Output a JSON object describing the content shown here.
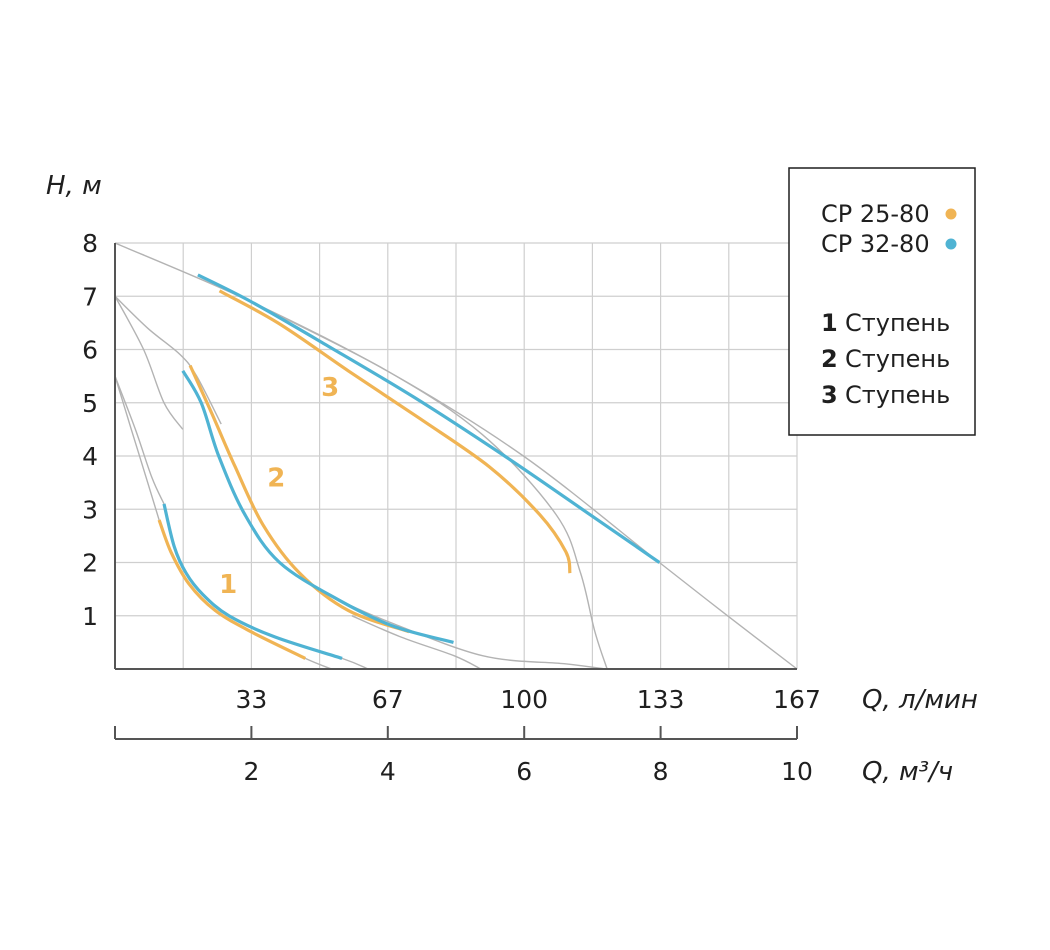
{
  "chart_data": {
    "type": "line",
    "y_axis": {
      "label": "H, м",
      "ylim": [
        0,
        8
      ],
      "ticks": [
        "1",
        "2",
        "3",
        "4",
        "5",
        "6",
        "7",
        "8"
      ]
    },
    "x_axis": {
      "label": "Q, л/мин",
      "xlim": [
        0,
        167
      ],
      "ticks": [
        "33",
        "67",
        "100",
        "133",
        "167"
      ]
    },
    "x_axis_secondary": {
      "label": "Q, м³/ч",
      "xlim": [
        0,
        10
      ],
      "ticks": [
        "2",
        "4",
        "6",
        "8",
        "10"
      ]
    },
    "grid": true,
    "colors": {
      "orange": "#f0b454",
      "blue": "#4fb3d3",
      "gray": "#b3b3b3"
    },
    "legend": {
      "placement": "top-right",
      "models": [
        {
          "name": "CP 25-80",
          "color": "#f0b454"
        },
        {
          "name": "CP 32-80",
          "color": "#4fb3d3"
        }
      ],
      "stages": [
        {
          "num": "1",
          "text": "Ступень"
        },
        {
          "num": "2",
          "text": "Ступень"
        },
        {
          "num": "3",
          "text": "Ступень"
        }
      ]
    },
    "stage_labels": [
      {
        "text": "1",
        "x": 27.7,
        "y": 1.6
      },
      {
        "text": "2",
        "x": 39.5,
        "y": 3.6
      },
      {
        "text": "3",
        "x": 52.7,
        "y": 5.3
      }
    ],
    "series": [
      {
        "model": "CP 25-80",
        "stage": "1",
        "color": "#f0b454",
        "points": [
          [
            10.8,
            2.8
          ],
          [
            13.7,
            2.2
          ],
          [
            18.1,
            1.6
          ],
          [
            24.5,
            1.1
          ],
          [
            33.3,
            0.7
          ],
          [
            46.6,
            0.2
          ]
        ]
      },
      {
        "model": "CP 32-80",
        "stage": "1",
        "color": "#4fb3d3",
        "points": [
          [
            12.0,
            3.1
          ],
          [
            14.5,
            2.3
          ],
          [
            17.4,
            1.8
          ],
          [
            21.5,
            1.4
          ],
          [
            27.9,
            1.0
          ],
          [
            39.2,
            0.6
          ],
          [
            55.6,
            0.2
          ]
        ]
      },
      {
        "model": "CP 25-80",
        "stage": "2",
        "color": "#f0b454",
        "points": [
          [
            18.4,
            5.7
          ],
          [
            23.7,
            4.8
          ],
          [
            29.4,
            3.8
          ],
          [
            36.3,
            2.7
          ],
          [
            45.2,
            1.8
          ],
          [
            57.1,
            1.1
          ],
          [
            72.0,
            0.7
          ]
        ]
      },
      {
        "model": "CP 32-80",
        "stage": "2",
        "color": "#4fb3d3",
        "points": [
          [
            16.6,
            5.6
          ],
          [
            21.1,
            5.0
          ],
          [
            25.4,
            4.0
          ],
          [
            31.8,
            2.9
          ],
          [
            40.3,
            2.0
          ],
          [
            54.7,
            1.3
          ],
          [
            68.3,
            0.8
          ],
          [
            82.9,
            0.5
          ]
        ]
      },
      {
        "model": "CP 25-80",
        "stage": "3",
        "color": "#f0b454",
        "points": [
          [
            25.6,
            7.1
          ],
          [
            39.9,
            6.5
          ],
          [
            57.1,
            5.6
          ],
          [
            74.7,
            4.7
          ],
          [
            91.6,
            3.8
          ],
          [
            104.0,
            2.9
          ],
          [
            110.4,
            2.2
          ],
          [
            111.4,
            1.8
          ]
        ]
      },
      {
        "model": "CP 32-80",
        "stage": "3",
        "color": "#4fb3d3",
        "points": [
          [
            20.3,
            7.4
          ],
          [
            33.3,
            6.9
          ],
          [
            51.4,
            6.1
          ],
          [
            73.3,
            5.1
          ],
          [
            95.4,
            4.0
          ],
          [
            116.3,
            2.9
          ],
          [
            133.3,
            2.0
          ]
        ]
      }
    ],
    "reference_lines": [
      {
        "color": "#b3b3b3",
        "points": [
          [
            0,
            8.0
          ],
          [
            33.3,
            6.9
          ],
          [
            66.6,
            5.6
          ],
          [
            100,
            4.0
          ],
          [
            133.3,
            2.0
          ],
          [
            150,
            1.0
          ],
          [
            167,
            0
          ]
        ]
      },
      {
        "color": "#b3b3b3",
        "points": [
          [
            20.3,
            7.4
          ],
          [
            33.3,
            6.9
          ],
          [
            66.6,
            5.6
          ],
          [
            90,
            4.4
          ],
          [
            108,
            2.9
          ],
          [
            114,
            1.8
          ],
          [
            117.5,
            0.7
          ],
          [
            120.5,
            0
          ]
        ]
      },
      {
        "color": "#b3b3b3",
        "points": [
          [
            0,
            7.0
          ],
          [
            8,
            6.4
          ],
          [
            16,
            5.9
          ],
          [
            20,
            5.5
          ],
          [
            26,
            4.6
          ]
        ]
      },
      {
        "color": "#b3b3b3",
        "points": [
          [
            0,
            7.0
          ],
          [
            7,
            6.0
          ],
          [
            12,
            5.0
          ],
          [
            16.6,
            4.5
          ]
        ]
      },
      {
        "color": "#b3b3b3",
        "points": [
          [
            54.6,
            1.3
          ],
          [
            66.6,
            0.9
          ],
          [
            90,
            0.25
          ],
          [
            110,
            0.1
          ],
          [
            120,
            0
          ]
        ]
      },
      {
        "color": "#b3b3b3",
        "points": [
          [
            58,
            1.0
          ],
          [
            70,
            0.6
          ],
          [
            83,
            0.25
          ],
          [
            89.6,
            0
          ]
        ]
      },
      {
        "color": "#b3b3b3",
        "points": [
          [
            0,
            5.5
          ],
          [
            4,
            4.5
          ],
          [
            8,
            3.5
          ],
          [
            10.8,
            2.8
          ]
        ]
      },
      {
        "color": "#b3b3b3",
        "points": [
          [
            0,
            5.5
          ],
          [
            5,
            4.5
          ],
          [
            9,
            3.6
          ],
          [
            12,
            3.1
          ]
        ]
      },
      {
        "color": "#b3b3b3",
        "points": [
          [
            33.3,
            0.7
          ],
          [
            46.6,
            0.2
          ],
          [
            53,
            0
          ]
        ]
      },
      {
        "color": "#b3b3b3",
        "points": [
          [
            39.2,
            0.6
          ],
          [
            55.6,
            0.2
          ],
          [
            62,
            0
          ]
        ]
      }
    ]
  }
}
